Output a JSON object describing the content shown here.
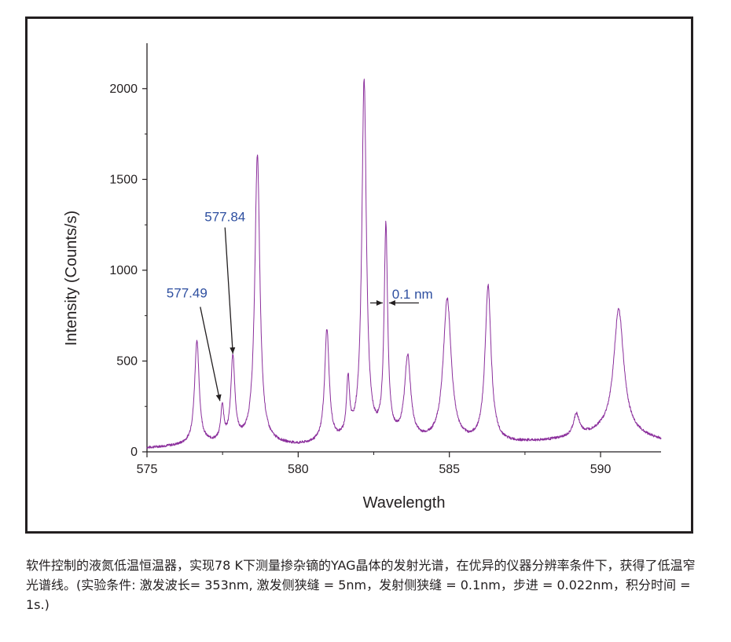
{
  "colors": {
    "series": "#8b2f9c",
    "annotation": "#2e4fa0",
    "axis": "#231f20",
    "frame": "#231f20"
  },
  "chart_data": {
    "type": "line",
    "title": "",
    "xlabel": "Wavelength",
    "ylabel": "Intensity (Counts/s)",
    "xlim": [
      575,
      592
    ],
    "ylim": [
      0,
      2250
    ],
    "xticks": [
      575,
      580,
      585,
      590
    ],
    "xtick_labels": [
      "575",
      "580",
      "585",
      "590"
    ],
    "yticks": [
      0,
      500,
      1000,
      1500,
      2000
    ],
    "ytick_labels": [
      "0",
      "500",
      "1000",
      "1500",
      "2000"
    ],
    "grid": false,
    "legend": "none",
    "series": [
      {
        "name": "spectrum",
        "baseline": [
          [
            575,
            20
          ],
          [
            576,
            30
          ],
          [
            577,
            40
          ],
          [
            578,
            45
          ],
          [
            579,
            40
          ],
          [
            580,
            30
          ],
          [
            581,
            40
          ],
          [
            582,
            60
          ],
          [
            583,
            60
          ],
          [
            584,
            50
          ],
          [
            585,
            40
          ],
          [
            586,
            40
          ],
          [
            587,
            45
          ],
          [
            588,
            55
          ],
          [
            589,
            70
          ],
          [
            590,
            100
          ],
          [
            591,
            90
          ],
          [
            592,
            60
          ]
        ],
        "peaks": [
          {
            "center": 576.65,
            "height": 570,
            "width": 0.09
          },
          {
            "center": 577.49,
            "height": 190,
            "width": 0.06
          },
          {
            "center": 577.84,
            "height": 460,
            "width": 0.08
          },
          {
            "center": 578.65,
            "height": 1590,
            "width": 0.1
          },
          {
            "center": 580.95,
            "height": 620,
            "width": 0.09
          },
          {
            "center": 581.65,
            "height": 310,
            "width": 0.06
          },
          {
            "center": 582.18,
            "height": 1975,
            "width": 0.09
          },
          {
            "center": 582.9,
            "height": 1150,
            "width": 0.07
          },
          {
            "center": 583.62,
            "height": 450,
            "width": 0.12
          },
          {
            "center": 584.93,
            "height": 790,
            "width": 0.16
          },
          {
            "center": 586.28,
            "height": 860,
            "width": 0.12
          },
          {
            "center": 589.2,
            "height": 120,
            "width": 0.12
          },
          {
            "center": 590.6,
            "height": 690,
            "width": 0.2
          }
        ]
      }
    ],
    "annotations": [
      {
        "text": "577.84",
        "label_at": [
          577.84,
          1270
        ],
        "points_to": [
          577.84,
          540
        ]
      },
      {
        "text": "577.49",
        "label_at": [
          577.49,
          850
        ],
        "points_to": [
          577.49,
          280
        ]
      },
      {
        "text": "0.1 nm",
        "label_at": [
          583.0,
          870
        ],
        "marks_peak_at": [
          582.9,
          820
        ]
      }
    ]
  },
  "caption": "软件控制的液氮低温恒温器，实现78 K下测量掺杂镝的YAG晶体的发射光谱，在优异的仪器分辨率条件下，获得了低温窄光谱线。(实验条件: 激发波长= 353nm, 激发侧狭缝 = 5nm，发射侧狭缝 = 0.1nm，步进 = 0.022nm，积分时间 = 1s.)"
}
